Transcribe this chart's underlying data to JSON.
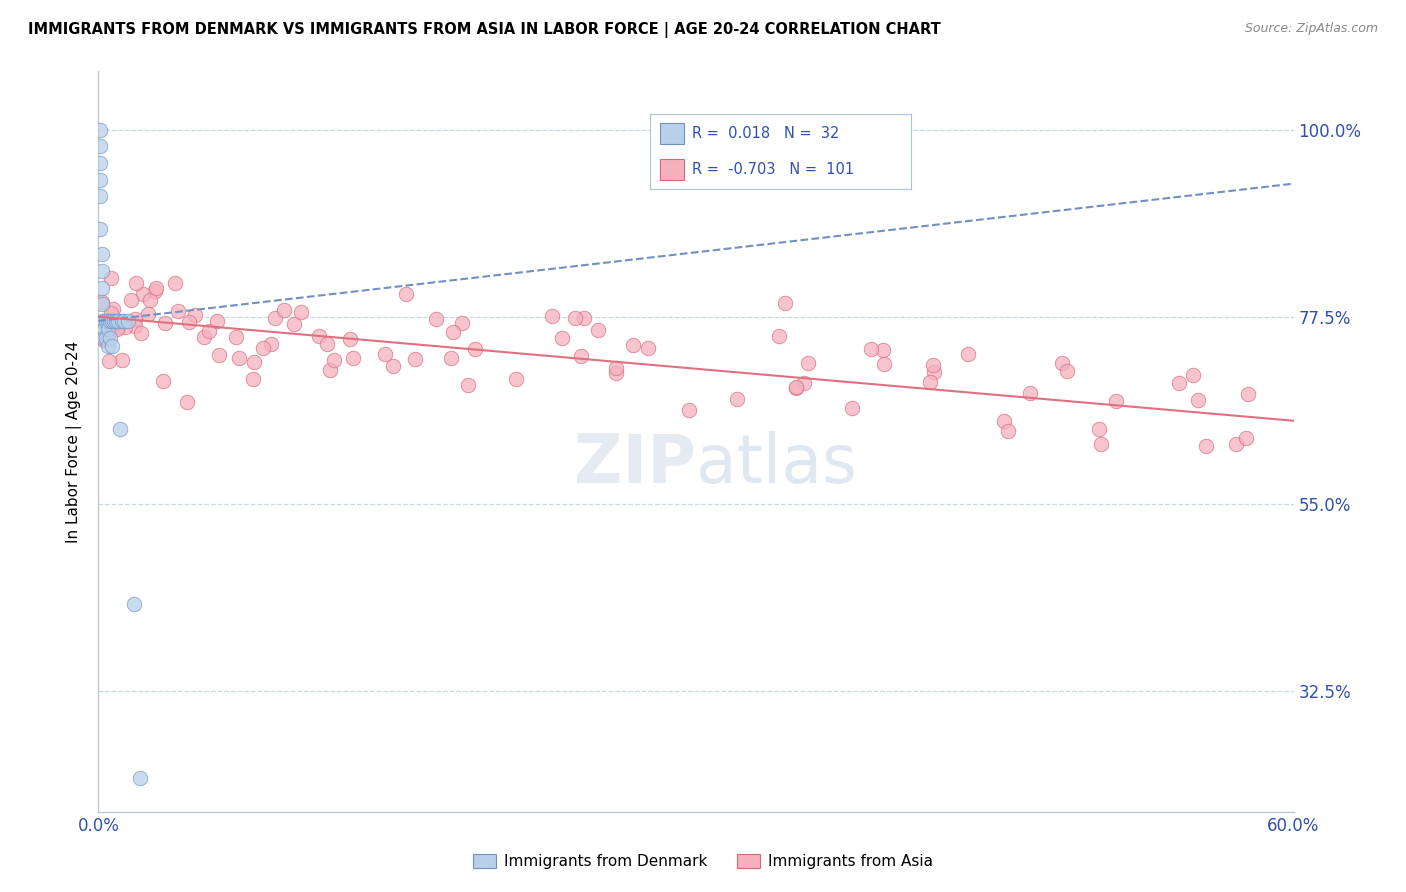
{
  "title": "IMMIGRANTS FROM DENMARK VS IMMIGRANTS FROM ASIA IN LABOR FORCE | AGE 20-24 CORRELATION CHART",
  "source": "Source: ZipAtlas.com",
  "ylabel": "In Labor Force | Age 20-24",
  "ytick_values": [
    0.325,
    0.55,
    0.775,
    1.0
  ],
  "ytick_labels": [
    "32.5%",
    "55.0%",
    "77.5%",
    "100.0%"
  ],
  "xtick_values": [
    0.0,
    0.6
  ],
  "xtick_labels": [
    "0.0%",
    "60.0%"
  ],
  "legend_denmark_R": "0.018",
  "legend_denmark_N": "32",
  "legend_asia_R": "-0.703",
  "legend_asia_N": "101",
  "color_denmark_fill": "#b8d0ea",
  "color_denmark_edge": "#7090c0",
  "color_asia_fill": "#f5b0be",
  "color_asia_edge": "#d06878",
  "color_denmark_line": "#7090c0",
  "color_asia_line": "#e07080",
  "color_text_blue": "#3050b0",
  "color_grid": "#c8d8e8",
  "color_axis": "#c0c8d0",
  "xlim": [
    0.0,
    0.6
  ],
  "ylim": [
    0.18,
    1.07
  ],
  "denmark_trend_x": [
    0.0,
    0.6
  ],
  "denmark_trend_y": [
    0.77,
    0.935
  ],
  "asia_trend_x": [
    0.0,
    0.6
  ],
  "asia_trend_y": [
    0.775,
    0.65
  ]
}
